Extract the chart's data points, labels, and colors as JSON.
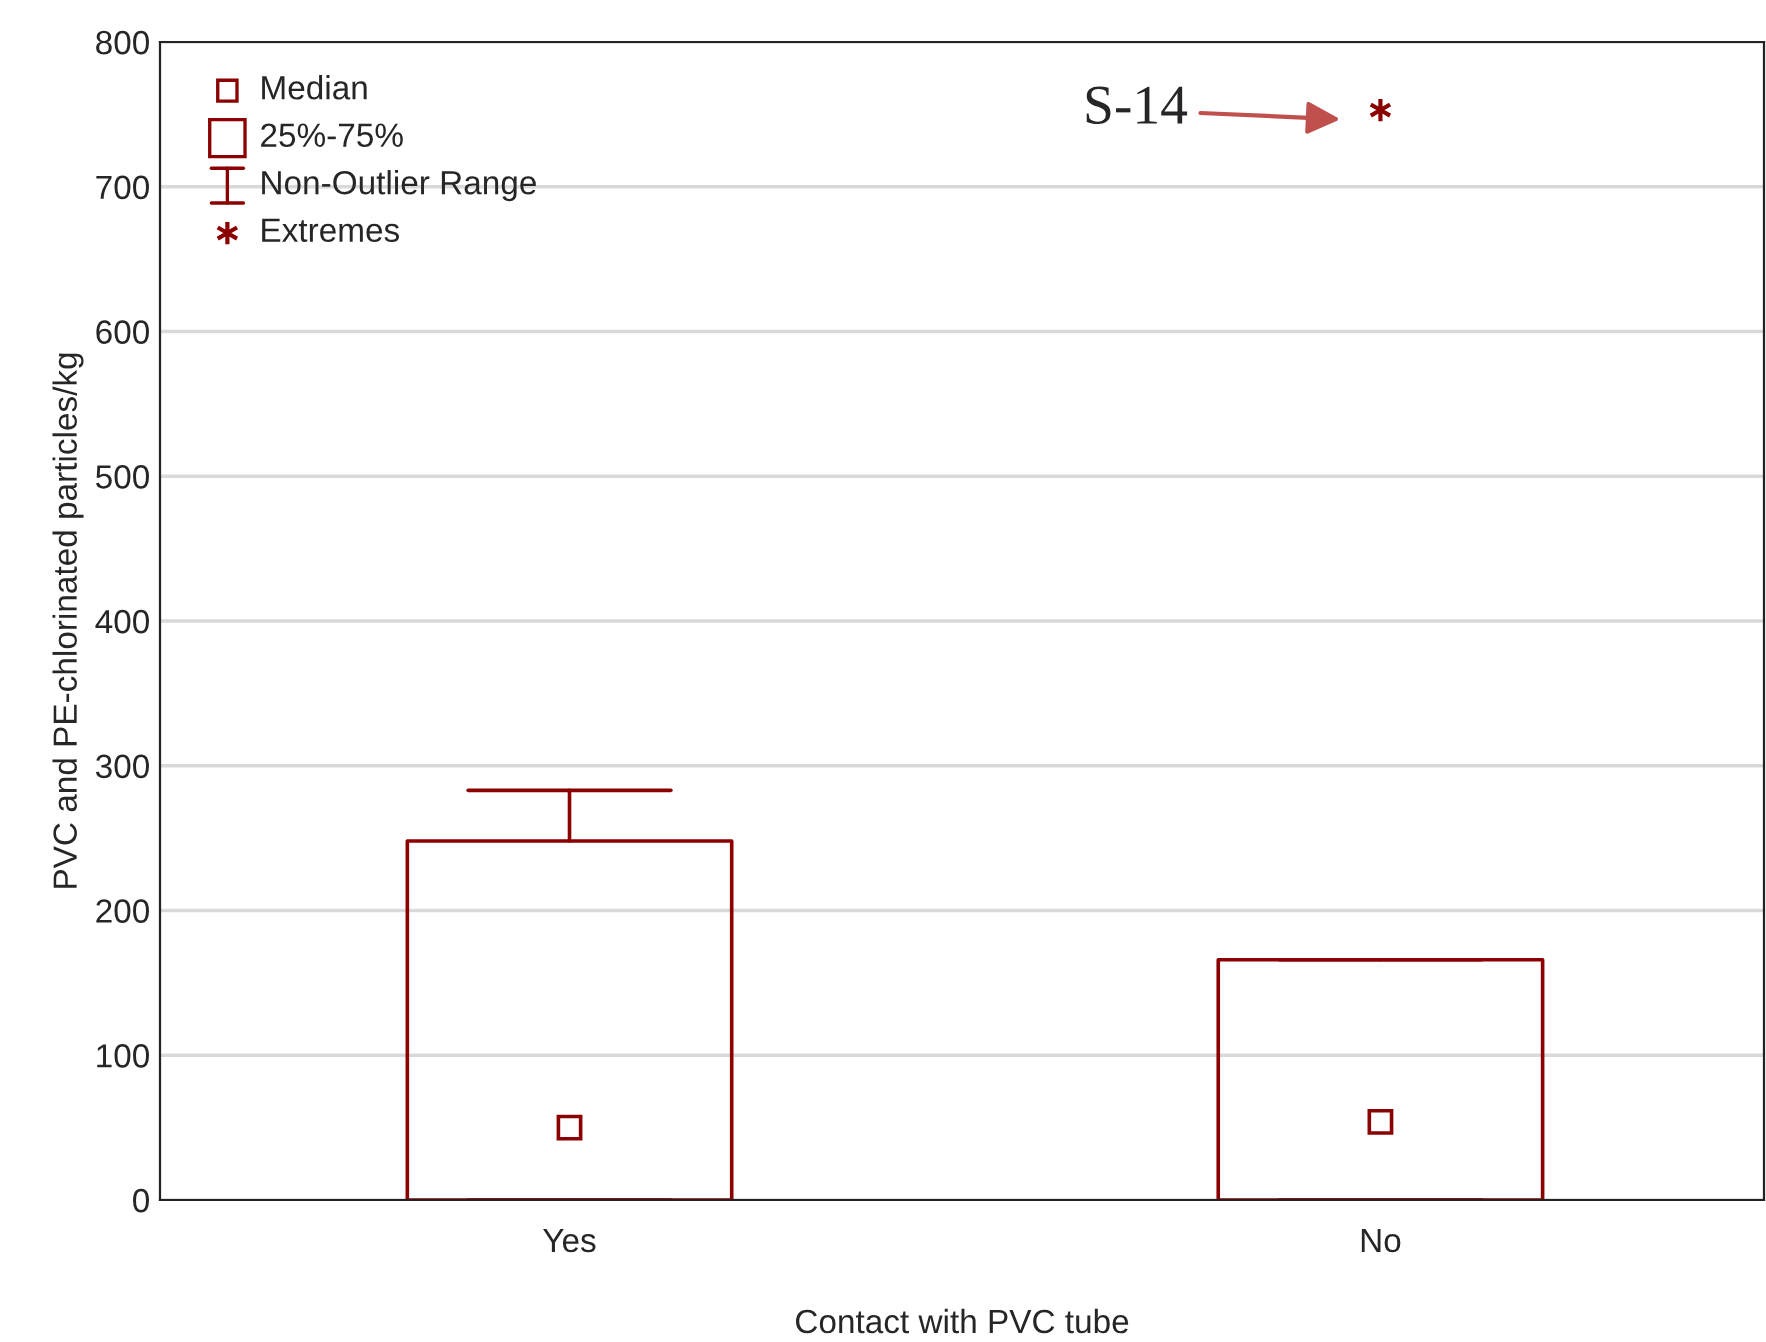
{
  "chart_data": {
    "type": "box",
    "xlabel": "Contact with PVC tube",
    "ylabel": "PVC and PE-chlorinated particles/kg",
    "categories": [
      "Yes",
      "No"
    ],
    "boxes": [
      {
        "low": 0,
        "q1": 0,
        "median": 50,
        "q3": 248,
        "high": 283
      },
      {
        "low": 0,
        "q1": 0,
        "median": 54,
        "q3": 166,
        "high": 166,
        "outliers": [
          753
        ]
      }
    ],
    "color": "#8b0000",
    "ylim": [
      0,
      800
    ],
    "yticks": [
      0,
      100,
      200,
      300,
      400,
      500,
      600,
      700,
      800
    ],
    "grid": "y",
    "annotations": [
      "Median",
      "25%-75%",
      "Non-Outlier Range",
      "Extremes",
      "S-14"
    ]
  }
}
